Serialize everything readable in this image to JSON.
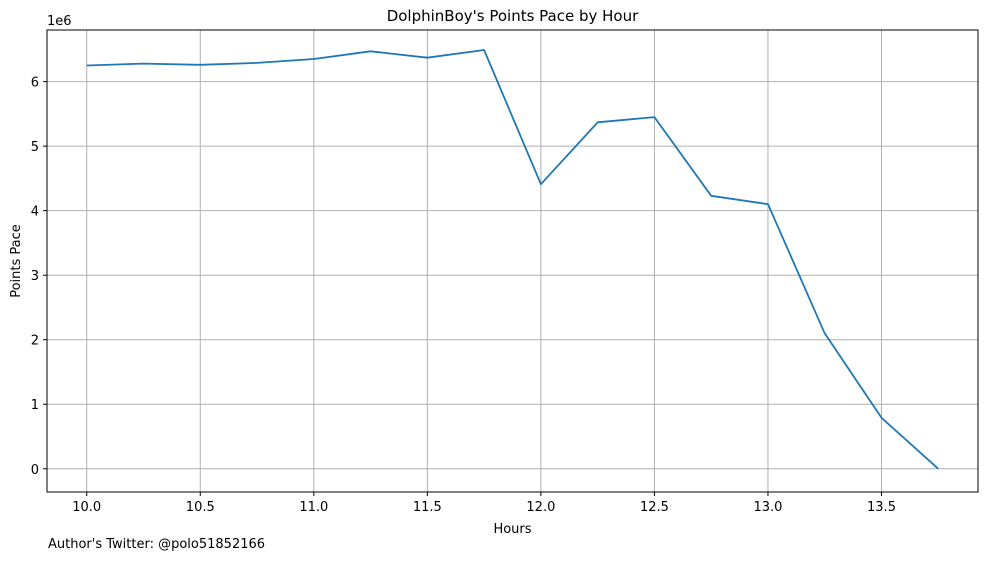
{
  "chart_data": {
    "type": "line",
    "title": "DolphinBoy's Points Pace by Hour",
    "xlabel": "Hours",
    "ylabel": "Points Pace",
    "y_offset_label": "1e6",
    "grid": true,
    "xlim": [
      9.825,
      13.925
    ],
    "ylim": [
      -360000,
      6800000
    ],
    "x_ticks": [
      10.0,
      10.5,
      11.0,
      11.5,
      12.0,
      12.5,
      13.0,
      13.5
    ],
    "x_tick_labels": [
      "10.0",
      "10.5",
      "11.0",
      "11.5",
      "12.0",
      "12.5",
      "13.0",
      "13.5"
    ],
    "y_ticks": [
      0,
      1000000,
      2000000,
      3000000,
      4000000,
      5000000,
      6000000
    ],
    "y_tick_labels": [
      "0",
      "1",
      "2",
      "3",
      "4",
      "5",
      "6"
    ],
    "series": [
      {
        "color": "#1f77b4",
        "x": [
          10.0,
          10.25,
          10.5,
          10.75,
          11.0,
          11.25,
          11.5,
          11.75,
          12.0,
          12.25,
          12.5,
          12.75,
          13.0,
          13.25,
          13.5,
          13.75
        ],
        "y": [
          6250000,
          6280000,
          6260000,
          6290000,
          6350000,
          6470000,
          6370000,
          6490000,
          4410000,
          5370000,
          5450000,
          4230000,
          4100000,
          2100000,
          790000,
          0
        ]
      }
    ]
  },
  "footer_text": "Author's Twitter: @polo51852166"
}
